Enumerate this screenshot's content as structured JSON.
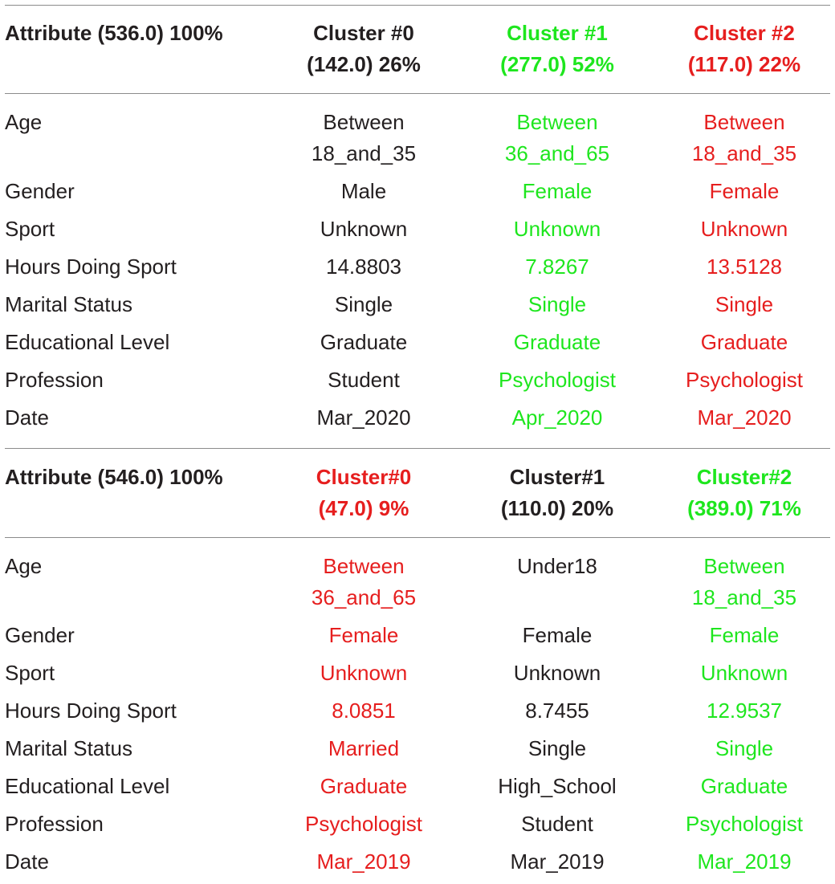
{
  "colors": {
    "black": "#231f20",
    "green": "#1ee61e",
    "red": "#e61e1e",
    "rule": "#8c8c8c"
  },
  "table_a": {
    "header": {
      "attribute": "Attribute (536.0) 100%",
      "clusters": [
        {
          "line1": "Cluster #0",
          "line2": "(142.0) 26%",
          "color": "black"
        },
        {
          "line1": "Cluster #1",
          "line2": "(277.0) 52%",
          "color": "green"
        },
        {
          "line1": "Cluster #2",
          "line2": "(117.0) 22%",
          "color": "red"
        }
      ]
    },
    "rows": [
      {
        "label": "Age",
        "values": [
          [
            "Between",
            "18_and_35"
          ],
          [
            "Between",
            "36_and_65"
          ],
          [
            "Between",
            "18_and_35"
          ]
        ]
      },
      {
        "label": "Gender",
        "values": [
          [
            "Male"
          ],
          [
            "Female"
          ],
          [
            "Female"
          ]
        ]
      },
      {
        "label": "Sport",
        "values": [
          [
            "Unknown"
          ],
          [
            "Unknown"
          ],
          [
            "Unknown"
          ]
        ]
      },
      {
        "label": "Hours Doing Sport",
        "values": [
          [
            "14.8803"
          ],
          [
            "7.8267"
          ],
          [
            "13.5128"
          ]
        ]
      },
      {
        "label": "Marital Status",
        "values": [
          [
            "Single"
          ],
          [
            "Single"
          ],
          [
            "Single"
          ]
        ]
      },
      {
        "label": "Educational Level",
        "values": [
          [
            "Graduate"
          ],
          [
            "Graduate"
          ],
          [
            "Graduate"
          ]
        ]
      },
      {
        "label": "Profession",
        "values": [
          [
            "Student"
          ],
          [
            "Psychologist"
          ],
          [
            "Psychologist"
          ]
        ]
      },
      {
        "label": "Date",
        "values": [
          [
            "Mar_2020"
          ],
          [
            "Apr_2020"
          ],
          [
            "Mar_2020"
          ]
        ]
      }
    ]
  },
  "table_b": {
    "header": {
      "attribute": "Attribute (546.0) 100%",
      "clusters": [
        {
          "line1": "Cluster#0",
          "line2": "(47.0) 9%",
          "color": "red"
        },
        {
          "line1": "Cluster#1",
          "line2": "(110.0) 20%",
          "color": "black"
        },
        {
          "line1": "Cluster#2",
          "line2": "(389.0) 71%",
          "color": "green"
        }
      ]
    },
    "rows": [
      {
        "label": "Age",
        "values": [
          [
            "Between",
            "36_and_65"
          ],
          [
            "Under18"
          ],
          [
            "Between",
            "18_and_35"
          ]
        ]
      },
      {
        "label": "Gender",
        "values": [
          [
            "Female"
          ],
          [
            "Female"
          ],
          [
            "Female"
          ]
        ]
      },
      {
        "label": "Sport",
        "values": [
          [
            "Unknown"
          ],
          [
            "Unknown"
          ],
          [
            "Unknown"
          ]
        ]
      },
      {
        "label": "Hours Doing Sport",
        "values": [
          [
            "8.0851"
          ],
          [
            "8.7455"
          ],
          [
            "12.9537"
          ]
        ]
      },
      {
        "label": "Marital Status",
        "values": [
          [
            "Married"
          ],
          [
            "Single"
          ],
          [
            "Single"
          ]
        ]
      },
      {
        "label": "Educational Level",
        "values": [
          [
            "Graduate"
          ],
          [
            "High_School"
          ],
          [
            "Graduate"
          ]
        ]
      },
      {
        "label": "Profession",
        "values": [
          [
            "Psychologist"
          ],
          [
            "Student"
          ],
          [
            "Psychologist"
          ]
        ]
      },
      {
        "label": "Date",
        "values": [
          [
            "Mar_2019"
          ],
          [
            "Mar_2019"
          ],
          [
            "Mar_2019"
          ]
        ]
      }
    ]
  }
}
